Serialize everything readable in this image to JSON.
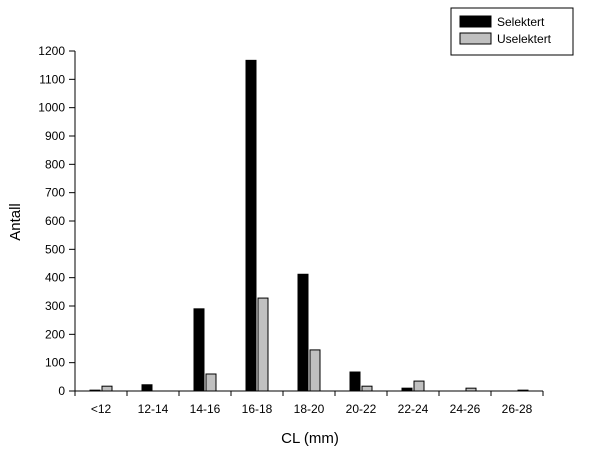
{
  "chart_data": {
    "type": "bar",
    "categories": [
      "<12",
      "12-14",
      "14-16",
      "16-18",
      "18-20",
      "20-22",
      "22-24",
      "24-26",
      "26-28"
    ],
    "series": [
      {
        "name": "Selektert",
        "values": [
          3,
          22,
          290,
          1167,
          412,
          67,
          10,
          0,
          0
        ]
      },
      {
        "name": "Uselektert",
        "values": [
          17,
          0,
          60,
          328,
          145,
          17,
          35,
          10,
          3
        ]
      }
    ],
    "xlabel": "CL (mm)",
    "ylabel": "Antall",
    "ylim": [
      0,
      1200
    ],
    "yticks": [
      0,
      100,
      200,
      300,
      400,
      500,
      600,
      700,
      800,
      900,
      1000,
      1100,
      1200
    ],
    "grid": false,
    "legend_position": "top-right"
  },
  "colors": {
    "Selektert": "#000000",
    "Uselektert": "#c0c0c0"
  }
}
